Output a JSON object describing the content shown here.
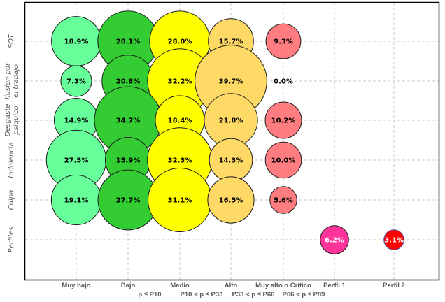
{
  "chart_data": {
    "type": "bubble",
    "title": "",
    "xlabel": "",
    "ylabel": "",
    "grid": true,
    "legend": "none",
    "categories": [
      "Muy bajo",
      "Bajo",
      "Medio",
      "Alto",
      "Muy alto o Crítico",
      "Perfil 1",
      "Perfil 2"
    ],
    "percentile_labels": [
      "p ≤ P10",
      "P10 < p ≤ P33",
      "P33 < p ≤ P66",
      "P66 < p ≤  P89"
    ],
    "rows": [
      "SQT",
      "Ilusion por el trabajo",
      "Desgaste psiquico",
      "Indolencia",
      "Culpa",
      "Perfiles"
    ],
    "row_label_lines": [
      [
        "SQT"
      ],
      [
        "Ilusion por",
        "el trabajo"
      ],
      [
        "Desgaste",
        "psiquico"
      ],
      [
        "Indolencia"
      ],
      [
        "Culpa"
      ],
      [
        "Perfiles"
      ]
    ],
    "colors": {
      "Muy bajo": "#66ff99",
      "Bajo": "#33cc33",
      "Medio": "#ffff00",
      "Alto": "#ffd966",
      "Muy alto o Crítico": "#ff7c80",
      "Perfil 1": "#ff3399",
      "Perfil 2": "#ff0000"
    },
    "series": [
      {
        "row": "SQT",
        "values": [
          18.9,
          28.1,
          28.0,
          15.7,
          9.3,
          null,
          null
        ],
        "labels": [
          "18.9%",
          "28.1%",
          "28.0%",
          "15.7%",
          "9.3%",
          null,
          null
        ]
      },
      {
        "row": "Ilusion por el trabajo",
        "values": [
          7.3,
          20.8,
          32.2,
          39.7,
          0.0,
          null,
          null
        ],
        "labels": [
          "7.3%",
          "20.8%",
          "32.2%",
          "39.7%",
          "0.0%",
          null,
          null
        ]
      },
      {
        "row": "Desgaste psiquico",
        "values": [
          14.9,
          34.7,
          18.4,
          21.8,
          10.2,
          null,
          null
        ],
        "labels": [
          "14.9%",
          "34.7%",
          "18.4%",
          "21.8%",
          "10.2%",
          null,
          null
        ]
      },
      {
        "row": "Indolencia",
        "values": [
          27.5,
          15.9,
          32.3,
          14.3,
          10.0,
          null,
          null
        ],
        "labels": [
          "27.5%",
          "15.9%",
          "32.3%",
          "14.3%",
          "10.0%",
          null,
          null
        ]
      },
      {
        "row": "Culpa",
        "values": [
          19.1,
          27.7,
          31.1,
          16.5,
          5.6,
          null,
          null
        ],
        "labels": [
          "19.1%",
          "27.7%",
          "31.1%",
          "16.5%",
          "5.6%",
          null,
          null
        ]
      },
      {
        "row": "Perfiles",
        "values": [
          null,
          null,
          null,
          null,
          null,
          6.2,
          3.1
        ],
        "labels": [
          null,
          null,
          null,
          null,
          null,
          "6.2%",
          "3.1%"
        ]
      }
    ]
  }
}
